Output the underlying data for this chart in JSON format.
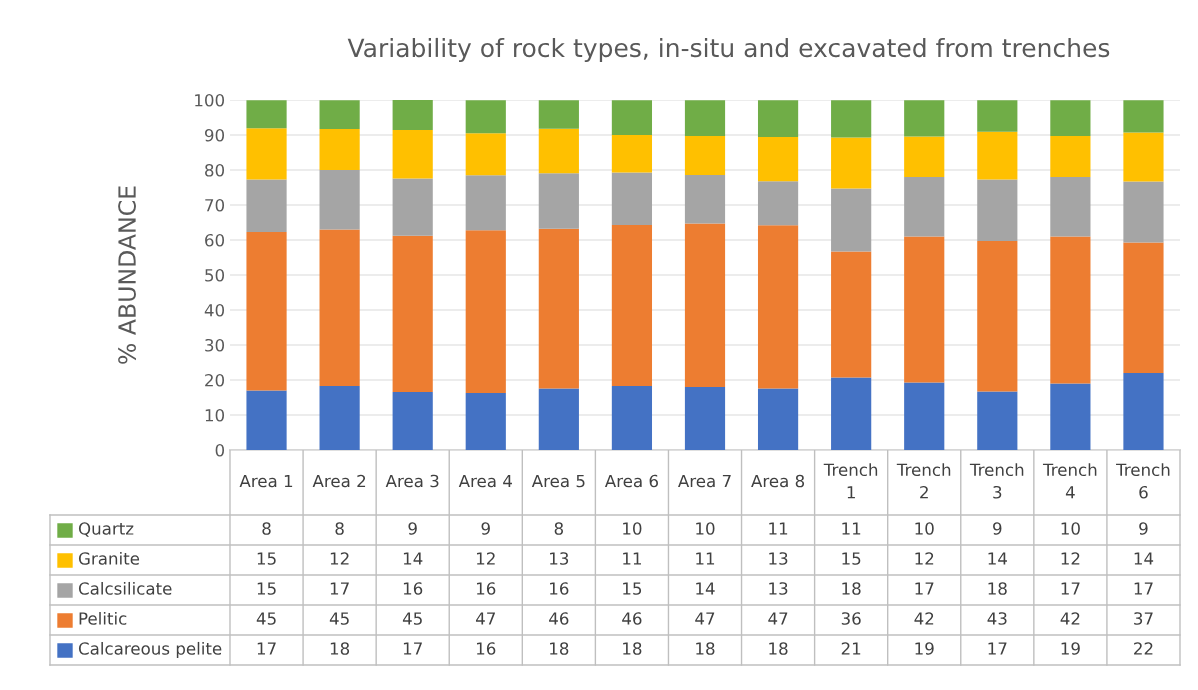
{
  "chart_data": {
    "type": "bar",
    "stacked": true,
    "title": "Variability of rock types, in-situ and excavated from trenches",
    "ylabel": "% ABUNDANCE",
    "categories": [
      "Area 1",
      "Area 2",
      "Area 3",
      "Area 4",
      "Area 5",
      "Area 6",
      "Area 7",
      "Area 8",
      "Trench 1",
      "Trench 2",
      "Trench 3",
      "Trench 4",
      "Trench 6"
    ],
    "series": [
      {
        "name": "Calcareous pelite",
        "color": "#4472c4",
        "values": [
          17,
          18.3,
          16.6,
          16.3,
          17.6,
          18.3,
          18,
          17.6,
          20.7,
          19.3,
          16.7,
          19,
          22
        ],
        "value_labels": [
          "17",
          "18",
          "17",
          "16",
          "18",
          "18",
          "18",
          "18",
          "21",
          "19",
          "17",
          "19",
          "22"
        ]
      },
      {
        "name": "Pelitic",
        "color": "#ed7d31",
        "values": [
          45.3,
          44.7,
          44.6,
          46.5,
          45.6,
          46,
          46.7,
          46.6,
          36,
          41.7,
          43,
          42,
          37.3
        ],
        "value_labels": [
          "45",
          "45",
          "45",
          "47",
          "46",
          "46",
          "47",
          "47",
          "36",
          "42",
          "43",
          "42",
          "37"
        ]
      },
      {
        "name": "Calcsilicate",
        "color": "#a5a5a5",
        "values": [
          15,
          17,
          16.4,
          15.7,
          15.9,
          15,
          13.9,
          12.6,
          18,
          17,
          17.6,
          17,
          17.4
        ],
        "value_labels": [
          "15",
          "17",
          "16",
          "16",
          "16",
          "15",
          "14",
          "13",
          "18",
          "17",
          "18",
          "17",
          "17"
        ]
      },
      {
        "name": "Granite",
        "color": "#ffc000",
        "values": [
          14.6,
          11.7,
          13.8,
          12,
          12.7,
          10.7,
          11.1,
          12.6,
          14.6,
          11.6,
          13.6,
          11.7,
          14
        ],
        "value_labels": [
          "15",
          "12",
          "14",
          "12",
          "13",
          "11",
          "11",
          "13",
          "15",
          "12",
          "14",
          "12",
          "14"
        ]
      },
      {
        "name": "Quartz",
        "color": "#70ad47",
        "values": [
          8,
          8.2,
          8.6,
          9.4,
          8.1,
          9.9,
          10.2,
          10.55,
          10.6,
          10.3,
          9,
          10.2,
          9.2
        ],
        "value_labels": [
          "8",
          "8",
          "9",
          "9",
          "8",
          "10",
          "10",
          "11",
          "11",
          "10",
          "9",
          "10",
          "9"
        ]
      }
    ],
    "ylim": [
      0,
      100
    ],
    "yticks": [
      0,
      10,
      20,
      30,
      40,
      50,
      60,
      70,
      80,
      90,
      100
    ],
    "grid": "y",
    "legend": "bottom"
  }
}
